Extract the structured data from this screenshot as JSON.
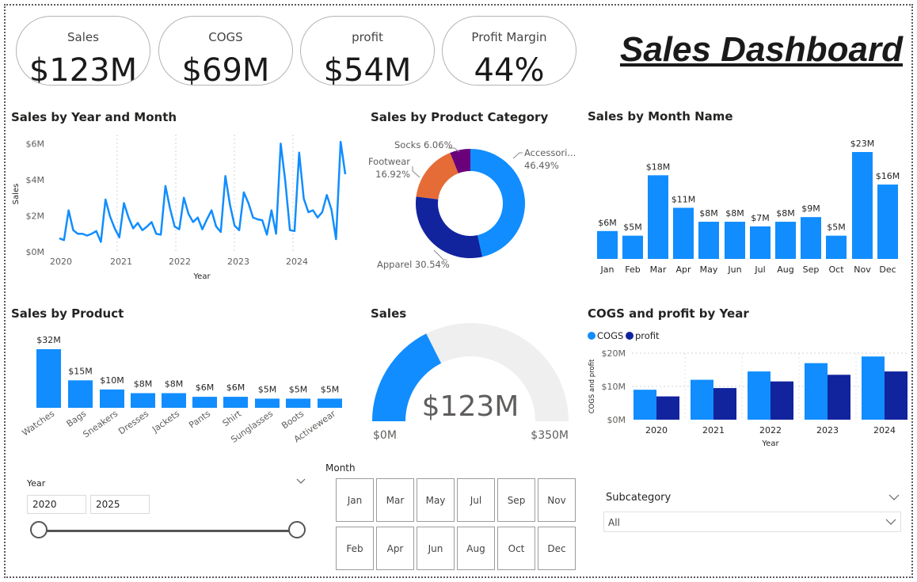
{
  "header": {
    "title": "Sales Dashboard"
  },
  "kpis": [
    {
      "label": "Sales",
      "value": "$123M"
    },
    {
      "label": "COGS",
      "value": "$69M"
    },
    {
      "label": "profit",
      "value": "$54M"
    },
    {
      "label": "Profit Margin",
      "value": "44%"
    }
  ],
  "visual_titles": {
    "line": "Sales by Year and Month",
    "donut": "Sales by Product Category",
    "month": "Sales by Month Name",
    "product": "Sales by Product",
    "gauge": "Sales",
    "cogs": "COGS and profit by Year"
  },
  "chart_data": [
    {
      "id": "line",
      "type": "line",
      "title": "Sales by Year and Month",
      "xlabel": "Year",
      "ylabel": "Sales",
      "x_ticks": [
        "2020",
        "2021",
        "2022",
        "2023",
        "2024"
      ],
      "y_ticks": [
        "$0M",
        "$2M",
        "$4M",
        "$6M"
      ],
      "ylim": [
        0,
        6.5
      ],
      "values": [
        0.75,
        0.65,
        2.3,
        1.2,
        1.0,
        1.0,
        0.9,
        1.0,
        1.15,
        0.55,
        2.9,
        1.95,
        1.3,
        0.8,
        2.7,
        1.9,
        1.3,
        1.6,
        1.2,
        1.4,
        1.65,
        1.0,
        0.95,
        3.65,
        2.4,
        1.4,
        1.25,
        3.0,
        2.1,
        1.65,
        1.9,
        1.25,
        1.8,
        2.3,
        1.4,
        1.1,
        4.2,
        2.6,
        1.45,
        1.2,
        3.3,
        2.7,
        1.9,
        1.8,
        1.75,
        0.95,
        2.3,
        1.0,
        6.0,
        3.9,
        1.2,
        1.15,
        5.5,
        2.95,
        2.2,
        2.3,
        1.9,
        2.2,
        3.15,
        2.35,
        0.7,
        6.1,
        4.3
      ]
    },
    {
      "id": "donut",
      "type": "pie",
      "title": "Sales by Product Category",
      "categories": [
        "Accessori...",
        "Apparel",
        "Footwear",
        "Socks"
      ],
      "values": [
        46.49,
        30.54,
        16.92,
        6.06
      ],
      "labels": [
        "46.49%",
        "Apparel 30.54%",
        "16.92%",
        "Socks 6.06%"
      ],
      "colors": [
        "#118dff",
        "#12239e",
        "#e66c37",
        "#6b007b"
      ]
    },
    {
      "id": "month",
      "type": "bar",
      "title": "Sales by Month Name",
      "categories": [
        "Jan",
        "Feb",
        "Mar",
        "Apr",
        "May",
        "Jun",
        "Jul",
        "Aug",
        "Sep",
        "Oct",
        "Nov",
        "Dec"
      ],
      "values": [
        6,
        5,
        18,
        11,
        8,
        8,
        7,
        8,
        9,
        5,
        23,
        16
      ],
      "labels": [
        "$6M",
        "$5M",
        "$18M",
        "$11M",
        "$8M",
        "$8M",
        "$7M",
        "$8M",
        "$9M",
        "$5M",
        "$23M",
        "$16M"
      ]
    },
    {
      "id": "product",
      "type": "bar",
      "title": "Sales by Product",
      "categories": [
        "Watches",
        "Bags",
        "Sneakers",
        "Dresses",
        "Jackets",
        "Pants",
        "Shirt",
        "Sunglasses",
        "Boots",
        "Activewear"
      ],
      "values": [
        32,
        15,
        10,
        8,
        8,
        6,
        6,
        5,
        5,
        5
      ],
      "labels": [
        "$32M",
        "$15M",
        "$10M",
        "$8M",
        "$8M",
        "$6M",
        "$6M",
        "$5M",
        "$5M",
        "$5M"
      ]
    },
    {
      "id": "gauge",
      "type": "gauge",
      "title": "Sales",
      "value": 123,
      "min": 0,
      "max": 350,
      "value_label": "$123M",
      "min_label": "$0M",
      "max_label": "$350M"
    },
    {
      "id": "cogs",
      "type": "bar",
      "title": "COGS and profit by Year",
      "xlabel": "Year",
      "ylabel": "COGS and profit",
      "categories": [
        "2020",
        "2021",
        "2022",
        "2023",
        "2024"
      ],
      "series": [
        {
          "name": "COGS",
          "values": [
            9,
            12,
            14.5,
            17,
            19
          ],
          "color": "#118dff"
        },
        {
          "name": "profit",
          "values": [
            7,
            9.5,
            11.5,
            13.5,
            14.5
          ],
          "color": "#12239e"
        }
      ],
      "y_ticks": [
        "$0M",
        "$10M",
        "$20M"
      ],
      "ylim": [
        0,
        20
      ]
    }
  ],
  "slicers": {
    "year": {
      "label": "Year",
      "start": "2020",
      "end": "2025"
    },
    "month": {
      "label": "Month",
      "items": [
        "Jan",
        "Mar",
        "May",
        "Jul",
        "Sep",
        "Nov",
        "Feb",
        "Apr",
        "Jun",
        "Aug",
        "Oct",
        "Dec"
      ]
    },
    "subcategory": {
      "label": "Subcategory",
      "value": "All"
    }
  }
}
